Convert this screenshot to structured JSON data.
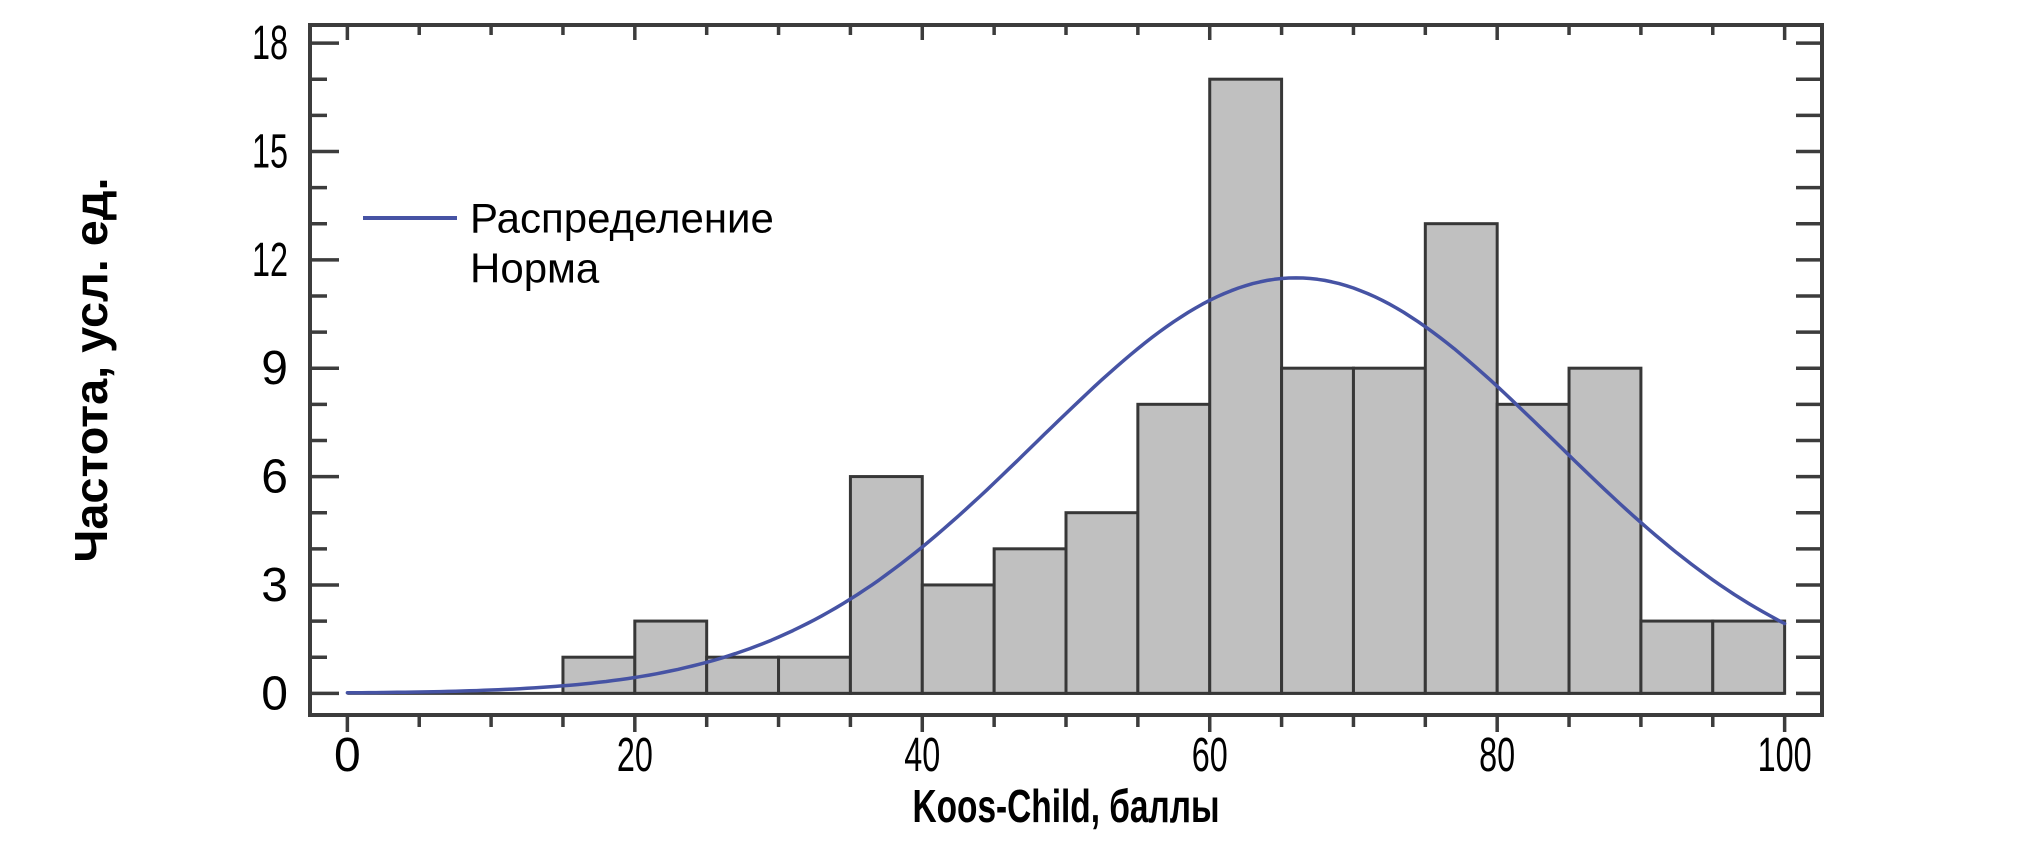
{
  "chart_data": {
    "type": "bar",
    "subtype": "histogram-with-normal-curve",
    "title": "",
    "xlabel": "Koos-Child, баллы",
    "ylabel": "Частота, усл. ед.",
    "bin_width": 5,
    "bin_starts": [
      15,
      20,
      25,
      30,
      35,
      40,
      45,
      50,
      55,
      60,
      65,
      70,
      75,
      80,
      85,
      90,
      95
    ],
    "values": [
      1,
      2,
      1,
      1,
      6,
      3,
      4,
      5,
      8,
      17,
      9,
      9,
      13,
      8,
      9,
      2,
      2
    ],
    "total_n": 100,
    "xlim": [
      -2.6,
      102.6
    ],
    "ylim": [
      -0.6,
      18.5
    ],
    "x_ticks": [
      0,
      20,
      40,
      60,
      80,
      100
    ],
    "x_minor_step": 5,
    "y_ticks": [
      0,
      3,
      6,
      9,
      12,
      15,
      18
    ],
    "y_minor_step": 1,
    "grid": false,
    "legend": {
      "line1": "Распределение",
      "line2": "Норма",
      "position": "upper-left-inside",
      "marker": "line"
    },
    "normal_curve": {
      "mean": 66,
      "sd": 18,
      "peak": 11.5,
      "x_from": 0,
      "x_to": 100
    },
    "colors": {
      "background": "#ffffff",
      "bar_fill": "#c0c0c0",
      "bar_border": "#373737",
      "axis": "#3c3c3c",
      "curve": "#4653a4",
      "text": "#000000"
    }
  }
}
